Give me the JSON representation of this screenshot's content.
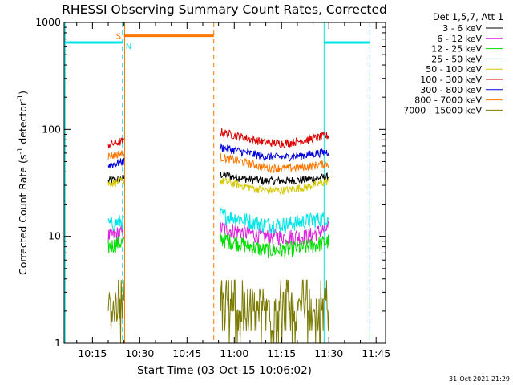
{
  "chart_data": {
    "type": "line",
    "title": "RHESSI Observing Summary Count Rates, Corrected",
    "ylabel_main": "Corrected Count Rate (s",
    "ylabel_sup1": "-1",
    "ylabel_mid": " detector",
    "ylabel_sup2": "-1",
    "ylabel_end": ")",
    "xlabel": "Start Time (03-Oct-15 10:06:02)",
    "yscale": "log",
    "ylim": [
      1,
      1000
    ],
    "xlim_minutes": [
      0,
      102
    ],
    "x_tick_labels": [
      {
        "label": "10:15",
        "minutes": 9
      },
      {
        "label": "10:30",
        "minutes": 24
      },
      {
        "label": "10:45",
        "minutes": 39
      },
      {
        "label": "11:00",
        "minutes": 54
      },
      {
        "label": "11:15",
        "minutes": 69
      },
      {
        "label": "11:30",
        "minutes": 84
      },
      {
        "label": "11:45",
        "minutes": 99
      }
    ],
    "y_tick_labels": [
      {
        "label": "1",
        "value": 1
      },
      {
        "label": "10",
        "value": 10
      },
      {
        "label": "100",
        "value": 100
      },
      {
        "label": "1000",
        "value": 1000
      }
    ],
    "legend_title": "Det 1,5,7, Att 1",
    "legend_placement": "right",
    "data_segments_minutes": [
      [
        14,
        19
      ],
      [
        49.5,
        84
      ]
    ],
    "series": [
      {
        "name": "3 - 6 keV",
        "color": "#000000",
        "seg1": [
          33,
          35
        ],
        "seg2": [
          38,
          35,
          33,
          33,
          34,
          36
        ]
      },
      {
        "name": "6 - 12 keV",
        "color": "#dd22dd",
        "seg1": [
          10,
          11
        ],
        "seg2": [
          12,
          11,
          10,
          10,
          10,
          12
        ]
      },
      {
        "name": "12 - 25 keV",
        "color": "#00dd00",
        "seg1": [
          8,
          9
        ],
        "seg2": [
          9.5,
          8.5,
          7.5,
          7.5,
          8,
          9
        ]
      },
      {
        "name": "25 - 50 keV",
        "color": "#00e5e5",
        "seg1": [
          13,
          14
        ],
        "seg2": [
          16,
          14.5,
          13,
          13,
          14,
          15
        ]
      },
      {
        "name": "50 - 100 keV",
        "color": "#d4c800",
        "seg1": [
          31,
          33
        ],
        "seg2": [
          33,
          30,
          27,
          27,
          29,
          33
        ]
      },
      {
        "name": "100 - 300 keV",
        "color": "#dd0000",
        "seg1": [
          72,
          78
        ],
        "seg2": [
          95,
          85,
          76,
          74,
          80,
          88
        ]
      },
      {
        "name": "300 - 800 keV",
        "color": "#0000dd",
        "seg1": [
          46,
          50
        ],
        "seg2": [
          68,
          62,
          56,
          55,
          58,
          62
        ]
      },
      {
        "name": "800 - 7000 keV",
        "color": "#ff7700",
        "seg1": [
          56,
          60
        ],
        "seg2": [
          55,
          50,
          44,
          43,
          45,
          48
        ]
      },
      {
        "name": "7000 - 15000 keV",
        "color": "#7b7a00",
        "seg1": [
          2,
          2.5
        ],
        "seg2": [
          2.2,
          1.6,
          1.6,
          1.6,
          2.0,
          2.8
        ]
      }
    ],
    "flags": [
      {
        "label": "S",
        "color": "#ff7700",
        "start": 19,
        "end": 47.5,
        "level": 750
      },
      {
        "label": "N",
        "color": "#00e5e5",
        "start": 0,
        "end": 18.5,
        "level": 650
      },
      {
        "label": "",
        "color": "#00e5e5",
        "start": 82.5,
        "end": 97,
        "level": 650
      }
    ],
    "vlines": [
      {
        "minutes": 18.5,
        "color": "#00e5e5",
        "style": "dashed"
      },
      {
        "minutes": 19.2,
        "color": "#ff7700",
        "style": "solid"
      },
      {
        "minutes": 47.5,
        "color": "#ff7700",
        "style": "dashed"
      },
      {
        "minutes": 82.5,
        "color": "#00e5e5",
        "style": "solid"
      },
      {
        "minutes": 97,
        "color": "#00e5e5",
        "style": "dashed"
      },
      {
        "minutes": 0.3,
        "color": "#00e5e5",
        "style": "solid"
      }
    ]
  },
  "footer_timestamp": "31-Oct-2021 21:29"
}
